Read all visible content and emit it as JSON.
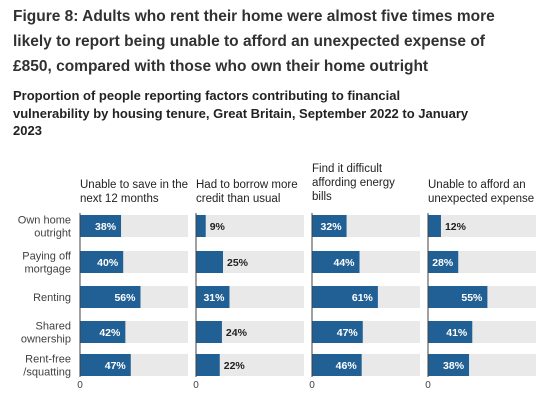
{
  "title_lines": [
    "Figure 8: Adults who rent their home were almost five times more",
    "likely to report being unable to afford an unexpected expense of",
    "£850, compared with those who own their home outright"
  ],
  "subtitle_lines": [
    "Proportion of people reporting factors contributing to financial",
    "vulnerability by housing tenure, Great Britain, September 2022 to January",
    "2023"
  ],
  "colors": {
    "bar": "#206095",
    "track": "#e9e9e9",
    "label_inside": "#ffffff",
    "label_outside": "#222222",
    "axis": "#414042"
  },
  "chart_data": {
    "type": "bar",
    "orientation": "horizontal",
    "layout": "small-multiples",
    "categories": [
      "Own home\noutright",
      "Paying off\nmortgage",
      "Renting",
      "Shared\nownership",
      "Rent-free\n/squatting"
    ],
    "xlim": [
      0,
      100
    ],
    "x_tick_labels": [
      "0",
      "0",
      "0",
      "0"
    ],
    "series": [
      {
        "name": "Unable to save in the\nnext 12 months",
        "values": [
          38,
          40,
          56,
          42,
          47
        ]
      },
      {
        "name": "Had to borrow more\ncredit than usual",
        "values": [
          9,
          25,
          31,
          24,
          22
        ]
      },
      {
        "name": "Find it difficult\naffording energy\nbills",
        "values": [
          32,
          44,
          61,
          47,
          46
        ]
      },
      {
        "name": "Unable to afford an\nunexpected expense",
        "values": [
          12,
          28,
          55,
          41,
          38
        ]
      }
    ]
  }
}
